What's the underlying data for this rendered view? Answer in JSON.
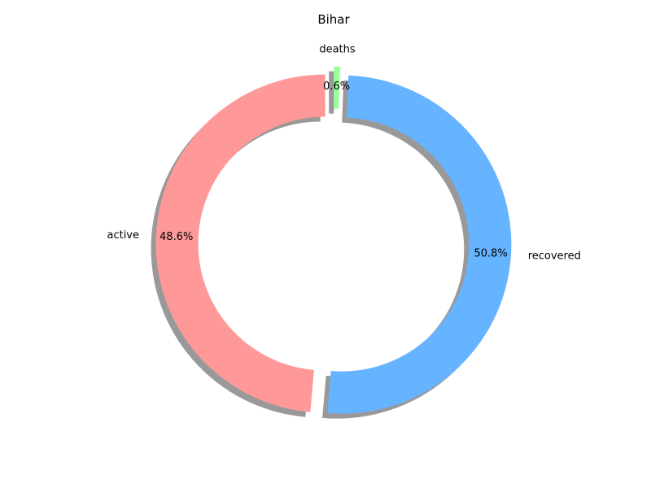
{
  "chart_data": {
    "type": "pie",
    "donut": true,
    "title": "Bihar",
    "labels": [
      "active",
      "recovered",
      "deaths"
    ],
    "values": [
      48.6,
      50.8,
      0.6
    ],
    "percent_labels": [
      "48.6%",
      "50.8%",
      "0.6%"
    ],
    "colors": [
      "#ff9999",
      "#66b3ff",
      "#99ff99"
    ],
    "shadow": true,
    "exploded": true,
    "start_angle": 90,
    "direction": "counterclockwise",
    "legend": false
  }
}
